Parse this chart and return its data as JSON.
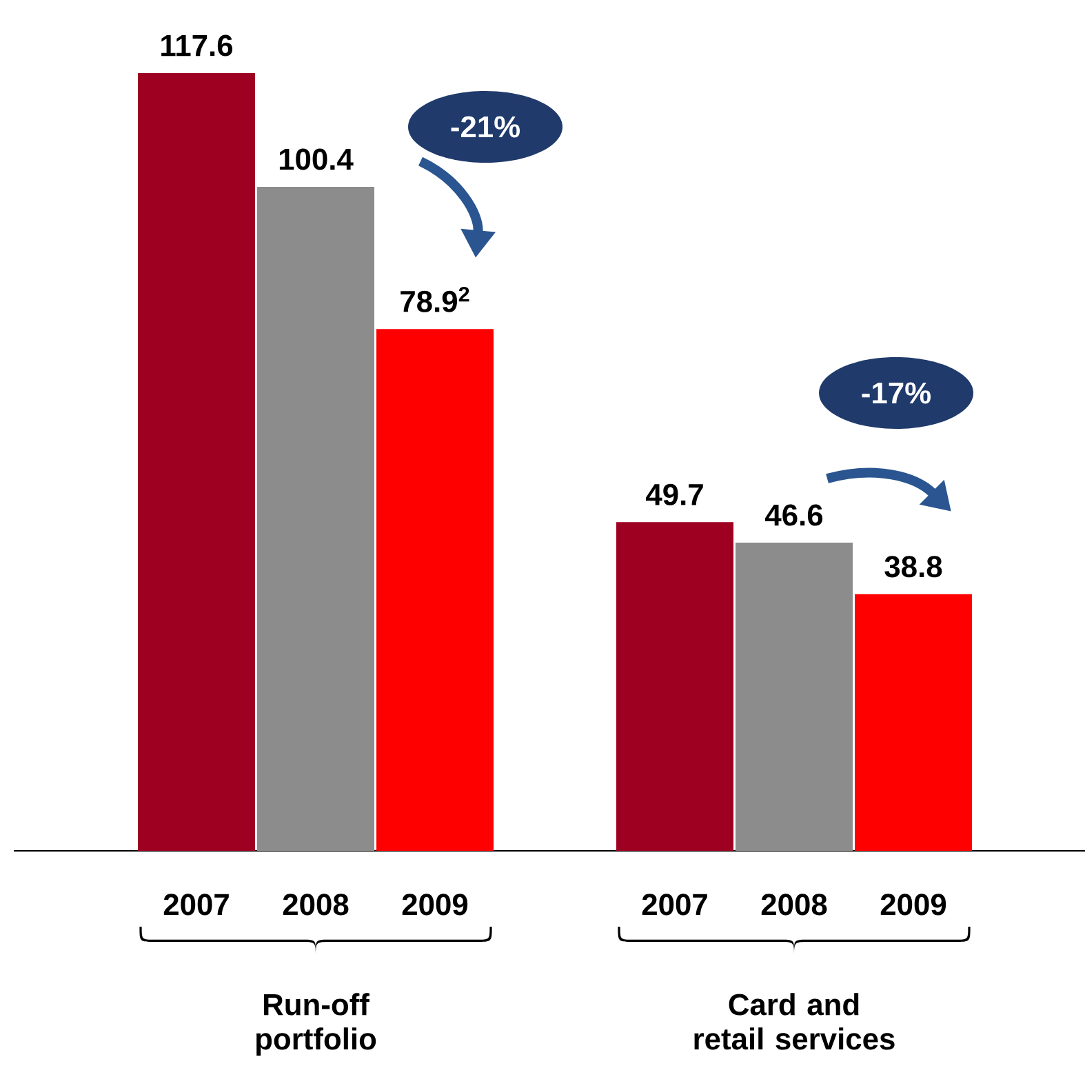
{
  "chart_data": {
    "type": "bar",
    "categories": [
      "Run-off portfolio",
      "Card and retail services"
    ],
    "series": [
      {
        "name": "2007",
        "color": "#9e0022",
        "values": [
          117.6,
          49.7
        ],
        "value_labels": [
          "117.6",
          "49.7"
        ]
      },
      {
        "name": "2008",
        "color": "#8c8c8c",
        "values": [
          100.4,
          46.6
        ],
        "value_labels": [
          "100.4",
          "46.6"
        ]
      },
      {
        "name": "2009",
        "color": "#ff0000",
        "values": [
          78.9,
          38.8
        ],
        "value_labels": [
          "78.9$^{2}$",
          "38.8"
        ]
      }
    ],
    "annotations": [
      "-21%",
      "-17%"
    ],
    "tick_labels": "x"
  }
}
